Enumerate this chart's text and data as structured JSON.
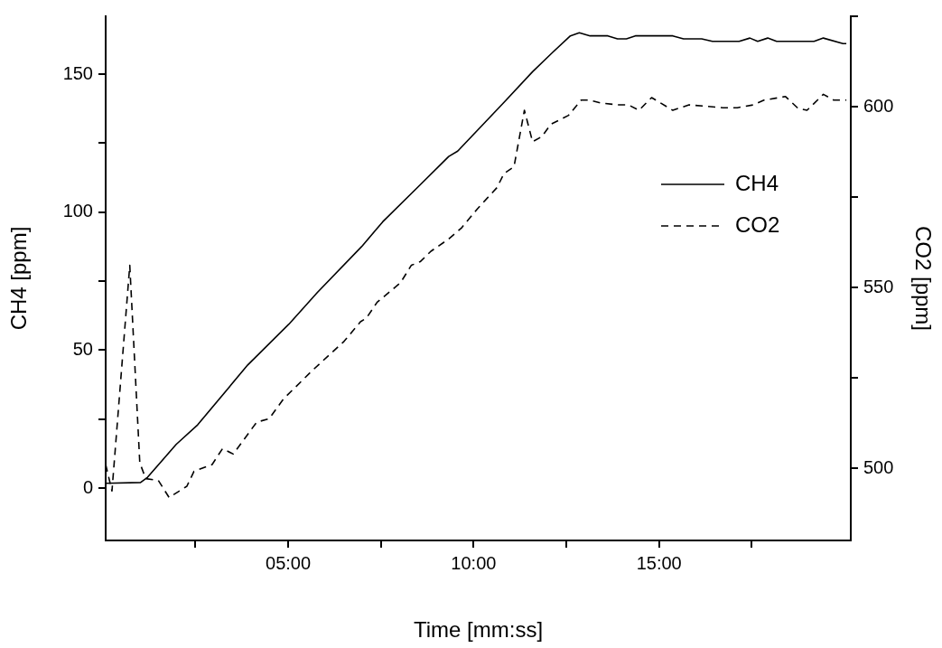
{
  "chart_data": {
    "type": "line",
    "xlabel": "Time [mm:ss]",
    "ylabel": "CH4 [ppm]",
    "y2label": "CO2 [ppm]",
    "xlim": [
      0.08,
      20.17
    ],
    "xticks": [
      {
        "value": 2.5,
        "label": null
      },
      {
        "value": 5,
        "label": "05:00"
      },
      {
        "value": 7.5,
        "label": null
      },
      {
        "value": 10,
        "label": "10:00"
      },
      {
        "value": 12.5,
        "label": null
      },
      {
        "value": 15,
        "label": "15:00"
      },
      {
        "value": 17.5,
        "label": null
      }
    ],
    "ylim": [
      -19,
      171
    ],
    "yticks": [
      {
        "value": 0,
        "label": "0"
      },
      {
        "value": 25,
        "label": null
      },
      {
        "value": 50,
        "label": "50"
      },
      {
        "value": 75,
        "label": null
      },
      {
        "value": 100,
        "label": "100"
      },
      {
        "value": 125,
        "label": null
      },
      {
        "value": 150,
        "label": "150"
      }
    ],
    "y2lim": [
      480,
      625
    ],
    "y2ticks": [
      {
        "value": 500,
        "label": "500"
      },
      {
        "value": 525,
        "label": null
      },
      {
        "value": 550,
        "label": "550"
      },
      {
        "value": 575,
        "label": null
      },
      {
        "value": 600,
        "label": "600"
      },
      {
        "value": 625,
        "label": null
      }
    ],
    "grid": false,
    "legend": "right",
    "marker": "none",
    "series": [
      {
        "name": "CH4",
        "color": "#000000",
        "line_style": "solid",
        "x": [
          0.08,
          1.02,
          1.21,
          1.98,
          2.56,
          3.91,
          5.02,
          5.79,
          6.98,
          7.55,
          8.56,
          9.33,
          9.57,
          10.34,
          10.82,
          11.59,
          12.13,
          12.61,
          12.85,
          13.14,
          13.62,
          13.88,
          14.12,
          14.36,
          15.37,
          15.66,
          16.15,
          16.44,
          17.16,
          17.45,
          17.66,
          17.93,
          18.17,
          19.18,
          19.43,
          19.96,
          20.05
        ],
        "values": [
          1.7,
          2.0,
          3.9,
          15.8,
          22.9,
          44.6,
          59.4,
          70.9,
          87.5,
          96.5,
          109.9,
          120.2,
          122.1,
          133,
          139.8,
          150.9,
          157.9,
          163.9,
          165,
          163.9,
          163.9,
          162.8,
          162.8,
          163.9,
          163.9,
          162.8,
          162.8,
          161.9,
          161.9,
          163.1,
          161.9,
          163.1,
          161.9,
          161.9,
          163.1,
          161.1,
          161.1
        ]
      },
      {
        "name": "CO2",
        "color": "#000000",
        "line_style": "dashed",
        "axis": "y2",
        "x": [
          0.08,
          0.25,
          0.73,
          1.0,
          1.16,
          1.5,
          1.79,
          2.27,
          2.46,
          2.95,
          3.23,
          3.52,
          4.15,
          4.49,
          4.87,
          5.64,
          6.51,
          6.95,
          7.11,
          7.4,
          8.03,
          8.32,
          8.56,
          8.85,
          9.33,
          9.67,
          10.1,
          10.63,
          10.82,
          11.09,
          11.37,
          11.59,
          11.84,
          12.08,
          12.56,
          12.9,
          13.14,
          13.43,
          13.88,
          14.17,
          14.46,
          14.8,
          15.37,
          15.81,
          16.39,
          16.72,
          17.11,
          17.55,
          17.83,
          18.41,
          18.75,
          18.99,
          19.43,
          19.71,
          20.05
        ],
        "values": [
          501.0,
          493.7,
          556.1,
          501.5,
          497.1,
          496.6,
          491.9,
          495.0,
          499.1,
          501.0,
          505.4,
          503.9,
          512.7,
          513.7,
          519.1,
          526.9,
          535.1,
          540.5,
          541.5,
          545.9,
          551.3,
          556.1,
          557.1,
          560.0,
          563.4,
          566.4,
          571.7,
          577.6,
          581.5,
          583.4,
          599.0,
          590.3,
          591.7,
          595.1,
          597.6,
          601.8,
          601.8,
          601.0,
          600.5,
          600.5,
          599.0,
          602.5,
          599.0,
          600.5,
          600.0,
          599.7,
          599.7,
          600.5,
          601.8,
          602.8,
          599.5,
          599.0,
          603.4,
          601.8,
          601.8
        ]
      }
    ]
  }
}
